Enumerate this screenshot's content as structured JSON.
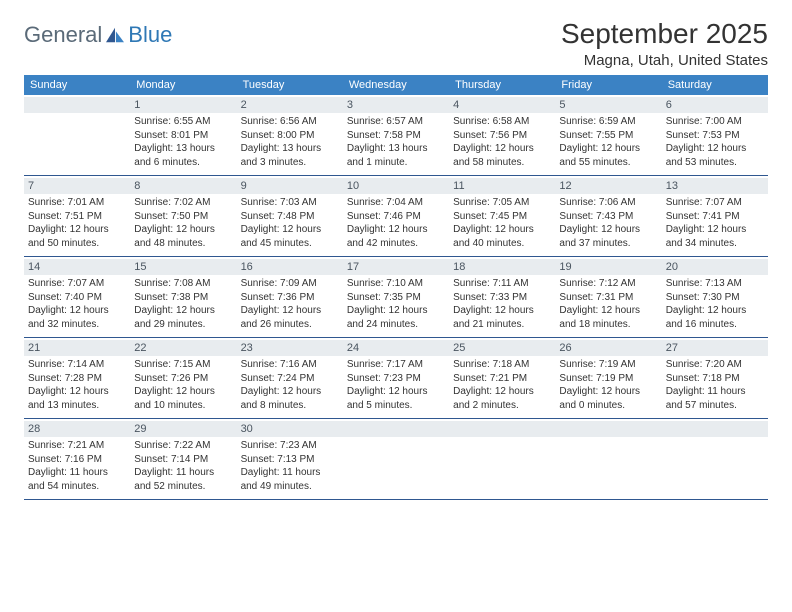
{
  "logo": {
    "text1": "General",
    "text2": "Blue"
  },
  "title": "September 2025",
  "location": "Magna, Utah, United States",
  "weekdays": [
    "Sunday",
    "Monday",
    "Tuesday",
    "Wednesday",
    "Thursday",
    "Friday",
    "Saturday"
  ],
  "colors": {
    "header_bg": "#3b82c4",
    "header_text": "#ffffff",
    "daynum_bg": "#e8ecef",
    "daynum_text": "#4a5560",
    "body_text": "#333333",
    "row_border": "#2f5790",
    "logo_gray": "#5a6a78",
    "logo_blue": "#2f78b5"
  },
  "weeks": [
    [
      {
        "n": "",
        "sunrise": "",
        "sunset": "",
        "daylight": ""
      },
      {
        "n": "1",
        "sunrise": "Sunrise: 6:55 AM",
        "sunset": "Sunset: 8:01 PM",
        "daylight": "Daylight: 13 hours and 6 minutes."
      },
      {
        "n": "2",
        "sunrise": "Sunrise: 6:56 AM",
        "sunset": "Sunset: 8:00 PM",
        "daylight": "Daylight: 13 hours and 3 minutes."
      },
      {
        "n": "3",
        "sunrise": "Sunrise: 6:57 AM",
        "sunset": "Sunset: 7:58 PM",
        "daylight": "Daylight: 13 hours and 1 minute."
      },
      {
        "n": "4",
        "sunrise": "Sunrise: 6:58 AM",
        "sunset": "Sunset: 7:56 PM",
        "daylight": "Daylight: 12 hours and 58 minutes."
      },
      {
        "n": "5",
        "sunrise": "Sunrise: 6:59 AM",
        "sunset": "Sunset: 7:55 PM",
        "daylight": "Daylight: 12 hours and 55 minutes."
      },
      {
        "n": "6",
        "sunrise": "Sunrise: 7:00 AM",
        "sunset": "Sunset: 7:53 PM",
        "daylight": "Daylight: 12 hours and 53 minutes."
      }
    ],
    [
      {
        "n": "7",
        "sunrise": "Sunrise: 7:01 AM",
        "sunset": "Sunset: 7:51 PM",
        "daylight": "Daylight: 12 hours and 50 minutes."
      },
      {
        "n": "8",
        "sunrise": "Sunrise: 7:02 AM",
        "sunset": "Sunset: 7:50 PM",
        "daylight": "Daylight: 12 hours and 48 minutes."
      },
      {
        "n": "9",
        "sunrise": "Sunrise: 7:03 AM",
        "sunset": "Sunset: 7:48 PM",
        "daylight": "Daylight: 12 hours and 45 minutes."
      },
      {
        "n": "10",
        "sunrise": "Sunrise: 7:04 AM",
        "sunset": "Sunset: 7:46 PM",
        "daylight": "Daylight: 12 hours and 42 minutes."
      },
      {
        "n": "11",
        "sunrise": "Sunrise: 7:05 AM",
        "sunset": "Sunset: 7:45 PM",
        "daylight": "Daylight: 12 hours and 40 minutes."
      },
      {
        "n": "12",
        "sunrise": "Sunrise: 7:06 AM",
        "sunset": "Sunset: 7:43 PM",
        "daylight": "Daylight: 12 hours and 37 minutes."
      },
      {
        "n": "13",
        "sunrise": "Sunrise: 7:07 AM",
        "sunset": "Sunset: 7:41 PM",
        "daylight": "Daylight: 12 hours and 34 minutes."
      }
    ],
    [
      {
        "n": "14",
        "sunrise": "Sunrise: 7:07 AM",
        "sunset": "Sunset: 7:40 PM",
        "daylight": "Daylight: 12 hours and 32 minutes."
      },
      {
        "n": "15",
        "sunrise": "Sunrise: 7:08 AM",
        "sunset": "Sunset: 7:38 PM",
        "daylight": "Daylight: 12 hours and 29 minutes."
      },
      {
        "n": "16",
        "sunrise": "Sunrise: 7:09 AM",
        "sunset": "Sunset: 7:36 PM",
        "daylight": "Daylight: 12 hours and 26 minutes."
      },
      {
        "n": "17",
        "sunrise": "Sunrise: 7:10 AM",
        "sunset": "Sunset: 7:35 PM",
        "daylight": "Daylight: 12 hours and 24 minutes."
      },
      {
        "n": "18",
        "sunrise": "Sunrise: 7:11 AM",
        "sunset": "Sunset: 7:33 PM",
        "daylight": "Daylight: 12 hours and 21 minutes."
      },
      {
        "n": "19",
        "sunrise": "Sunrise: 7:12 AM",
        "sunset": "Sunset: 7:31 PM",
        "daylight": "Daylight: 12 hours and 18 minutes."
      },
      {
        "n": "20",
        "sunrise": "Sunrise: 7:13 AM",
        "sunset": "Sunset: 7:30 PM",
        "daylight": "Daylight: 12 hours and 16 minutes."
      }
    ],
    [
      {
        "n": "21",
        "sunrise": "Sunrise: 7:14 AM",
        "sunset": "Sunset: 7:28 PM",
        "daylight": "Daylight: 12 hours and 13 minutes."
      },
      {
        "n": "22",
        "sunrise": "Sunrise: 7:15 AM",
        "sunset": "Sunset: 7:26 PM",
        "daylight": "Daylight: 12 hours and 10 minutes."
      },
      {
        "n": "23",
        "sunrise": "Sunrise: 7:16 AM",
        "sunset": "Sunset: 7:24 PM",
        "daylight": "Daylight: 12 hours and 8 minutes."
      },
      {
        "n": "24",
        "sunrise": "Sunrise: 7:17 AM",
        "sunset": "Sunset: 7:23 PM",
        "daylight": "Daylight: 12 hours and 5 minutes."
      },
      {
        "n": "25",
        "sunrise": "Sunrise: 7:18 AM",
        "sunset": "Sunset: 7:21 PM",
        "daylight": "Daylight: 12 hours and 2 minutes."
      },
      {
        "n": "26",
        "sunrise": "Sunrise: 7:19 AM",
        "sunset": "Sunset: 7:19 PM",
        "daylight": "Daylight: 12 hours and 0 minutes."
      },
      {
        "n": "27",
        "sunrise": "Sunrise: 7:20 AM",
        "sunset": "Sunset: 7:18 PM",
        "daylight": "Daylight: 11 hours and 57 minutes."
      }
    ],
    [
      {
        "n": "28",
        "sunrise": "Sunrise: 7:21 AM",
        "sunset": "Sunset: 7:16 PM",
        "daylight": "Daylight: 11 hours and 54 minutes."
      },
      {
        "n": "29",
        "sunrise": "Sunrise: 7:22 AM",
        "sunset": "Sunset: 7:14 PM",
        "daylight": "Daylight: 11 hours and 52 minutes."
      },
      {
        "n": "30",
        "sunrise": "Sunrise: 7:23 AM",
        "sunset": "Sunset: 7:13 PM",
        "daylight": "Daylight: 11 hours and 49 minutes."
      },
      {
        "n": "",
        "sunrise": "",
        "sunset": "",
        "daylight": ""
      },
      {
        "n": "",
        "sunrise": "",
        "sunset": "",
        "daylight": ""
      },
      {
        "n": "",
        "sunrise": "",
        "sunset": "",
        "daylight": ""
      },
      {
        "n": "",
        "sunrise": "",
        "sunset": "",
        "daylight": ""
      }
    ]
  ]
}
